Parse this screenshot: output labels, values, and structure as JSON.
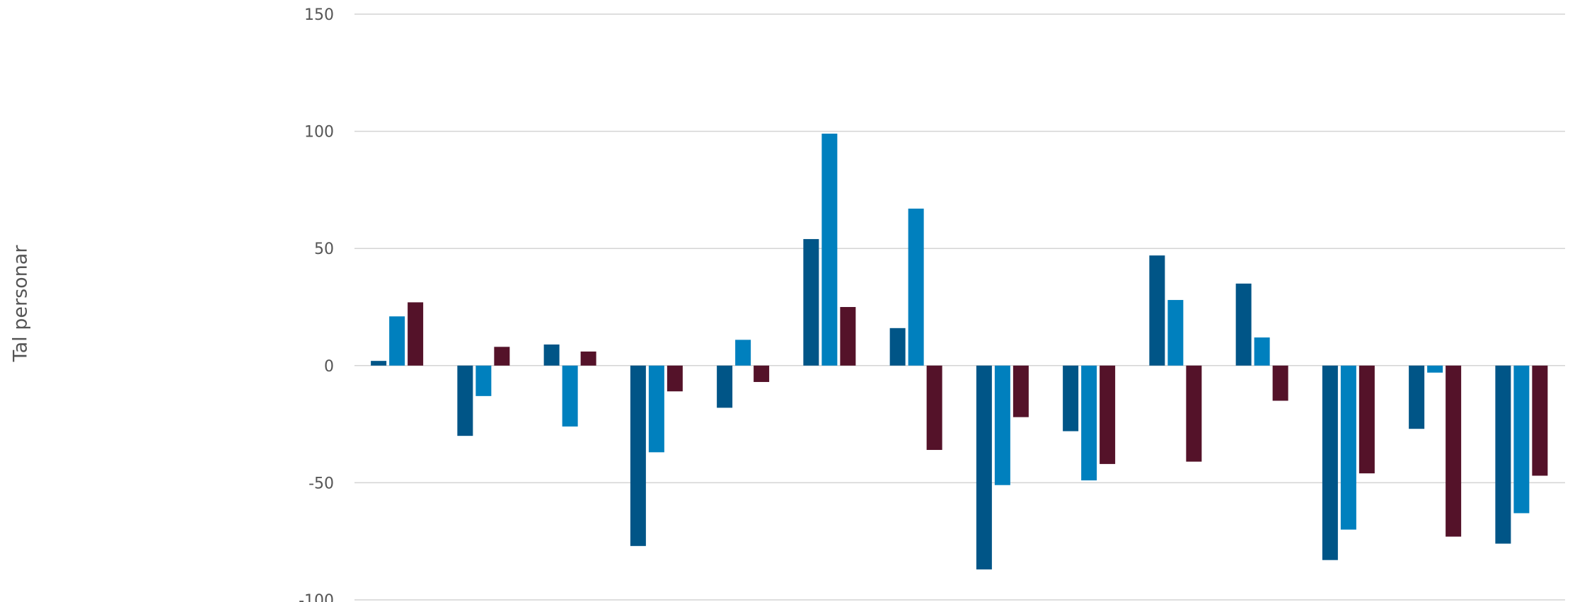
{
  "chart_data": {
    "type": "bar",
    "title": "",
    "xlabel": "",
    "ylabel": "Tal personar",
    "ylim": [
      -100,
      150
    ],
    "yticks": [
      150,
      100,
      50,
      0,
      -50,
      -100
    ],
    "yticklabels": [
      "150",
      "100",
      "50",
      "0",
      "-50",
      "-100"
    ],
    "grid": true,
    "categories": [
      "",
      "",
      "",
      "",
      "",
      "",
      "",
      "",
      "",
      "",
      "",
      "",
      "",
      ""
    ],
    "series": [
      {
        "color": "#005587",
        "values": [
          2,
          -30,
          9,
          -77,
          -18,
          54,
          16,
          -87,
          -28,
          47,
          35,
          -83,
          -27,
          -76
        ]
      },
      {
        "color": "#0080BE",
        "values": [
          21,
          -13,
          -26,
          -37,
          11,
          99,
          67,
          -51,
          -49,
          28,
          12,
          -70,
          -3,
          -63
        ]
      },
      {
        "color": "#541229",
        "values": [
          27,
          8,
          6,
          -11,
          -7,
          25,
          -36,
          -22,
          -42,
          -41,
          -15,
          -46,
          -73,
          -47
        ]
      }
    ]
  }
}
